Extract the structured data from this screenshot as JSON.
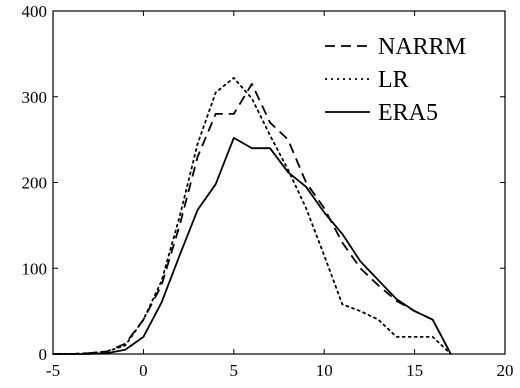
{
  "chart_data": {
    "type": "line",
    "title": "",
    "xlabel": "",
    "ylabel": "",
    "xlim": [
      -5,
      20
    ],
    "ylim": [
      0,
      400
    ],
    "xticks": [
      -5,
      0,
      5,
      10,
      15,
      20
    ],
    "yticks": [
      0,
      100,
      200,
      300,
      400
    ],
    "grid": false,
    "legend_position": "top-right",
    "series": [
      {
        "name": "NARRM",
        "style": "dashed",
        "color": "#000000",
        "points": [
          [
            -5,
            0
          ],
          [
            -4,
            0
          ],
          [
            -3,
            1
          ],
          [
            -2,
            3
          ],
          [
            -1,
            12
          ],
          [
            0,
            40
          ],
          [
            1,
            80
          ],
          [
            2,
            150
          ],
          [
            3,
            230
          ],
          [
            4,
            280
          ],
          [
            5,
            280
          ],
          [
            6,
            315
          ],
          [
            7,
            270
          ],
          [
            8,
            250
          ],
          [
            9,
            200
          ],
          [
            10,
            170
          ],
          [
            11,
            130
          ],
          [
            12,
            100
          ],
          [
            13,
            80
          ],
          [
            14,
            62
          ],
          [
            15,
            50
          ],
          [
            16,
            40
          ],
          [
            17,
            0
          ]
        ]
      },
      {
        "name": "LR",
        "style": "dotted",
        "color": "#000000",
        "points": [
          [
            -5,
            0
          ],
          [
            -4,
            0
          ],
          [
            -3,
            1
          ],
          [
            -2,
            3
          ],
          [
            -1,
            10
          ],
          [
            0,
            40
          ],
          [
            1,
            85
          ],
          [
            2,
            160
          ],
          [
            3,
            245
          ],
          [
            4,
            305
          ],
          [
            5,
            322
          ],
          [
            6,
            298
          ],
          [
            7,
            255
          ],
          [
            8,
            215
          ],
          [
            9,
            170
          ],
          [
            10,
            115
          ],
          [
            11,
            58
          ],
          [
            12,
            50
          ],
          [
            13,
            40
          ],
          [
            14,
            20
          ],
          [
            15,
            20
          ],
          [
            16,
            20
          ],
          [
            17,
            0
          ]
        ]
      },
      {
        "name": "ERA5",
        "style": "solid",
        "color": "#000000",
        "points": [
          [
            -5,
            0
          ],
          [
            -4,
            0
          ],
          [
            -3,
            0
          ],
          [
            -2,
            1
          ],
          [
            -1,
            5
          ],
          [
            0,
            20
          ],
          [
            1,
            60
          ],
          [
            2,
            115
          ],
          [
            3,
            168
          ],
          [
            4,
            198
          ],
          [
            5,
            252
          ],
          [
            6,
            240
          ],
          [
            7,
            240
          ],
          [
            8,
            212
          ],
          [
            9,
            195
          ],
          [
            10,
            165
          ],
          [
            11,
            140
          ],
          [
            12,
            108
          ],
          [
            13,
            86
          ],
          [
            14,
            64
          ],
          [
            15,
            50
          ],
          [
            16,
            40
          ],
          [
            17,
            0
          ]
        ]
      }
    ]
  }
}
